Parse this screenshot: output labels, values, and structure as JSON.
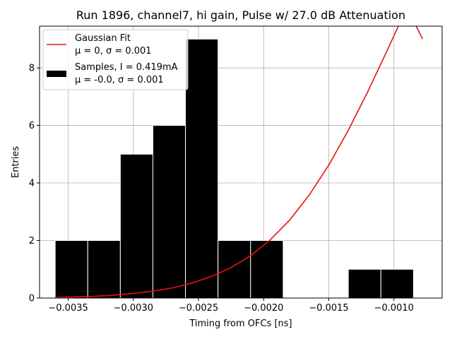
{
  "chart_data": {
    "type": "bar",
    "title": "Run 1896, channel7, hi gain, Pulse w/ 27.0 dB Attenuation",
    "xlabel": "Timing from OFCs [ns]",
    "ylabel": "Entries",
    "xlim": [
      -0.00372,
      -0.00063
    ],
    "ylim": [
      0,
      9.45
    ],
    "grid": true,
    "legend_position": "upper-left",
    "x_ticks": [
      {
        "value": -0.0035,
        "label": "−0.0035"
      },
      {
        "value": -0.003,
        "label": "−0.0030"
      },
      {
        "value": -0.0025,
        "label": "−0.0025"
      },
      {
        "value": -0.002,
        "label": "−0.0020"
      },
      {
        "value": -0.0015,
        "label": "−0.0015"
      },
      {
        "value": -0.001,
        "label": "−0.0010"
      }
    ],
    "y_ticks": [
      {
        "value": 0,
        "label": "0"
      },
      {
        "value": 2,
        "label": "2"
      },
      {
        "value": 4,
        "label": "4"
      },
      {
        "value": 6,
        "label": "6"
      },
      {
        "value": 8,
        "label": "8"
      }
    ],
    "histogram": {
      "name": "Samples, I = 0.419mA",
      "stats": "μ = -0.0, σ = 0.001",
      "color": "#000000",
      "edge_color": "#ffffff",
      "bins": [
        {
          "x0": -0.0036,
          "x1": -0.00335,
          "count": 2
        },
        {
          "x0": -0.00335,
          "x1": -0.0031,
          "count": 2
        },
        {
          "x0": -0.0031,
          "x1": -0.00285,
          "count": 5
        },
        {
          "x0": -0.00285,
          "x1": -0.0026,
          "count": 6
        },
        {
          "x0": -0.0026,
          "x1": -0.00235,
          "count": 9
        },
        {
          "x0": -0.00235,
          "x1": -0.0021,
          "count": 2
        },
        {
          "x0": -0.0021,
          "x1": -0.00185,
          "count": 2
        },
        {
          "x0": -0.00185,
          "x1": -0.0016,
          "count": 0
        },
        {
          "x0": -0.0016,
          "x1": -0.00135,
          "count": 0
        },
        {
          "x0": -0.00135,
          "x1": -0.0011,
          "count": 1
        },
        {
          "x0": -0.0011,
          "x1": -0.00085,
          "count": 1
        }
      ]
    },
    "fit_curve": {
      "name": "Gaussian Fit",
      "stats": "μ = 0, σ = 0.001",
      "color": "#e8120f",
      "x": [
        -0.0036,
        -0.00345,
        -0.0033,
        -0.00315,
        -0.003,
        -0.00285,
        -0.0027,
        -0.00255,
        -0.0024,
        -0.00225,
        -0.0021,
        -0.00195,
        -0.0018,
        -0.00165,
        -0.0015,
        -0.00135,
        -0.0012,
        -0.00105,
        -0.0009,
        -0.00078
      ],
      "y": [
        0.02,
        0.04,
        0.06,
        0.1,
        0.16,
        0.24,
        0.35,
        0.52,
        0.75,
        1.06,
        1.47,
        2.02,
        2.71,
        3.58,
        4.62,
        5.83,
        7.18,
        8.62,
        10.1,
        9.0
      ]
    }
  }
}
